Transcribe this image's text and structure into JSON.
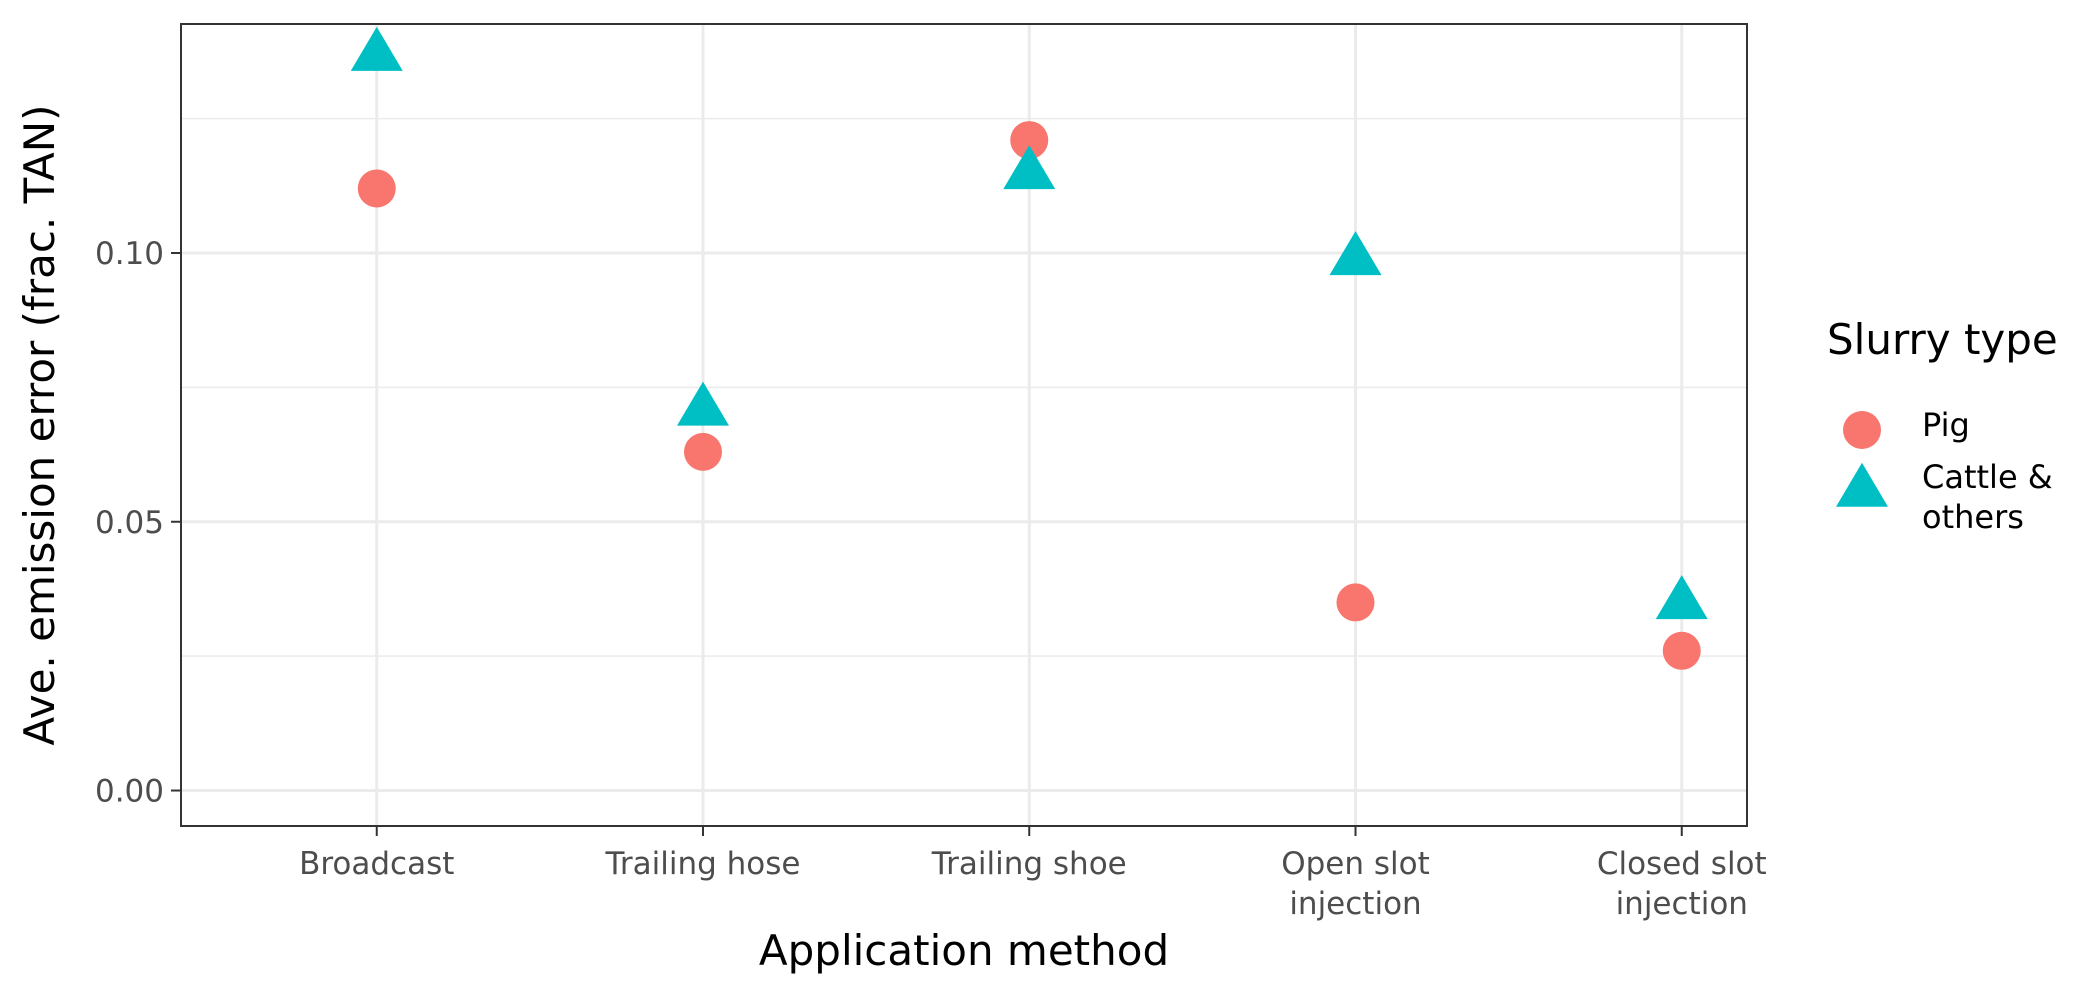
{
  "chart_data": {
    "type": "scatter",
    "xlabel": "Application method",
    "ylabel": "Ave. emission error (frac. TAN)",
    "categories": [
      [
        "Broadcast"
      ],
      [
        "Trailing hose"
      ],
      [
        "Trailing shoe"
      ],
      [
        "Open slot",
        "injection"
      ],
      [
        "Closed slot",
        "injection"
      ]
    ],
    "yticks": [
      {
        "value": 0.0,
        "label": "0.00"
      },
      {
        "value": 0.05,
        "label": "0.05"
      },
      {
        "value": 0.1,
        "label": "0.10"
      }
    ],
    "ylim": [
      -0.0066,
      0.1426
    ],
    "grid": true,
    "legend": {
      "title": "Slurry type",
      "placement": "right"
    },
    "series": [
      {
        "name": "Pig",
        "label_lines": [
          "Pig"
        ],
        "shape": "circle",
        "color": "#F8766D",
        "values": [
          0.112,
          0.063,
          0.121,
          0.035,
          0.026
        ]
      },
      {
        "name": "Cattle & others",
        "label_lines": [
          "Cattle &",
          "others"
        ],
        "shape": "triangle",
        "color": "#00BFC4",
        "values": [
          0.137,
          0.071,
          0.115,
          0.099,
          0.035
        ]
      }
    ]
  }
}
